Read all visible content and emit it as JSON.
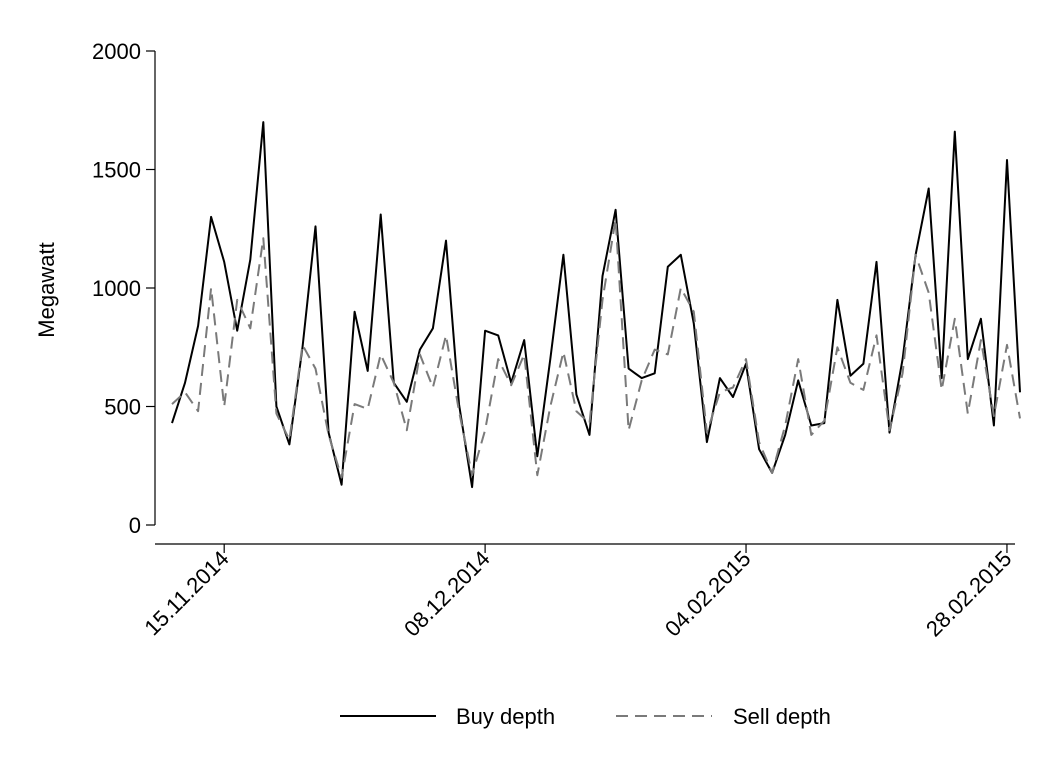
{
  "chart_data": {
    "type": "line",
    "title": "",
    "xlabel": "",
    "ylabel": "Megawatt",
    "ylim": [
      0,
      2000
    ],
    "yticks": [
      0,
      500,
      1000,
      1500,
      2000
    ],
    "x_ticks": [
      "15.11.2014",
      "08.12.2014",
      "04.02.2015",
      "28.02.2015"
    ],
    "x_tick_index": [
      4,
      24,
      44,
      64
    ],
    "grid": false,
    "legend_position": "bottom",
    "series": [
      {
        "name": "Buy depth",
        "color": "#000000",
        "dash": "solid",
        "values": [
          430,
          600,
          840,
          1300,
          1110,
          820,
          1120,
          1700,
          500,
          340,
          750,
          1260,
          390,
          170,
          900,
          650,
          1310,
          600,
          520,
          740,
          830,
          1200,
          510,
          160,
          820,
          800,
          600,
          780,
          290,
          700,
          1140,
          550,
          380,
          1050,
          1330,
          660,
          620,
          640,
          1090,
          1140,
          850,
          350,
          620,
          540,
          680,
          320,
          220,
          380,
          610,
          420,
          430,
          950,
          630,
          680,
          1110,
          390,
          700,
          1140,
          1420,
          620,
          1660,
          700,
          870,
          420,
          1540,
          560
        ]
      },
      {
        "name": "Sell depth",
        "color": "#7a7a7a",
        "dash": "dashed",
        "values": [
          510,
          560,
          480,
          1000,
          500,
          950,
          830,
          1210,
          470,
          360,
          760,
          660,
          380,
          200,
          510,
          490,
          720,
          600,
          400,
          720,
          580,
          800,
          480,
          210,
          400,
          700,
          590,
          720,
          210,
          500,
          730,
          480,
          430,
          950,
          1290,
          400,
          610,
          740,
          720,
          1000,
          900,
          390,
          560,
          580,
          700,
          350,
          220,
          420,
          700,
          380,
          440,
          750,
          600,
          570,
          800,
          400,
          640,
          1140,
          980,
          570,
          870,
          470,
          780,
          460,
          760,
          450
        ]
      }
    ]
  }
}
